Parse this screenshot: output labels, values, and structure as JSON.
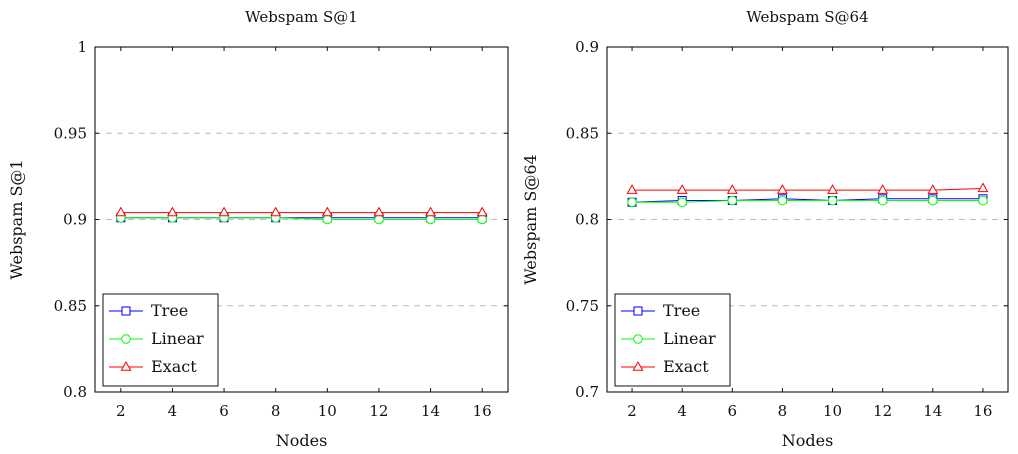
{
  "chart_data": [
    {
      "type": "line",
      "title": "Webspam S@1",
      "xlabel": "Nodes",
      "ylabel": "Webspam S@1",
      "x": [
        2,
        4,
        6,
        8,
        10,
        12,
        14,
        16
      ],
      "xlim": [
        1,
        17
      ],
      "ylim": [
        0.8,
        1.0
      ],
      "yticks": [
        0.8,
        0.85,
        0.9,
        0.95,
        1.0
      ],
      "ytick_labels": [
        "0.8",
        "0.85",
        "0.9",
        "0.95",
        "1"
      ],
      "grid": "horizontal-dashed",
      "legend_position": "bottom-left",
      "series": [
        {
          "name": "Tree",
          "color": "#0000ff",
          "marker": "square",
          "values": [
            0.901,
            0.901,
            0.901,
            0.901,
            0.901,
            0.901,
            0.901,
            0.901
          ]
        },
        {
          "name": "Linear",
          "color": "#00ff00",
          "marker": "circle",
          "values": [
            0.901,
            0.901,
            0.901,
            0.901,
            0.9,
            0.9,
            0.9,
            0.9
          ]
        },
        {
          "name": "Exact",
          "color": "#ff0000",
          "marker": "triangle",
          "values": [
            0.904,
            0.904,
            0.904,
            0.904,
            0.904,
            0.904,
            0.904,
            0.904
          ]
        }
      ]
    },
    {
      "type": "line",
      "title": "Webspam S@64",
      "xlabel": "Nodes",
      "ylabel": "Webspam S@64",
      "x": [
        2,
        4,
        6,
        8,
        10,
        12,
        14,
        16
      ],
      "xlim": [
        1,
        17
      ],
      "ylim": [
        0.7,
        0.9
      ],
      "yticks": [
        0.7,
        0.75,
        0.8,
        0.85,
        0.9
      ],
      "ytick_labels": [
        "0.7",
        "0.75",
        "0.8",
        "0.85",
        "0.9"
      ],
      "grid": "horizontal-dashed",
      "legend_position": "bottom-left",
      "series": [
        {
          "name": "Tree",
          "color": "#0000ff",
          "marker": "square",
          "values": [
            0.81,
            0.811,
            0.811,
            0.812,
            0.811,
            0.812,
            0.812,
            0.812
          ]
        },
        {
          "name": "Linear",
          "color": "#00ff00",
          "marker": "circle",
          "values": [
            0.81,
            0.81,
            0.811,
            0.811,
            0.811,
            0.811,
            0.811,
            0.811
          ]
        },
        {
          "name": "Exact",
          "color": "#ff0000",
          "marker": "triangle",
          "values": [
            0.817,
            0.817,
            0.817,
            0.817,
            0.817,
            0.817,
            0.817,
            0.818
          ]
        }
      ]
    }
  ]
}
